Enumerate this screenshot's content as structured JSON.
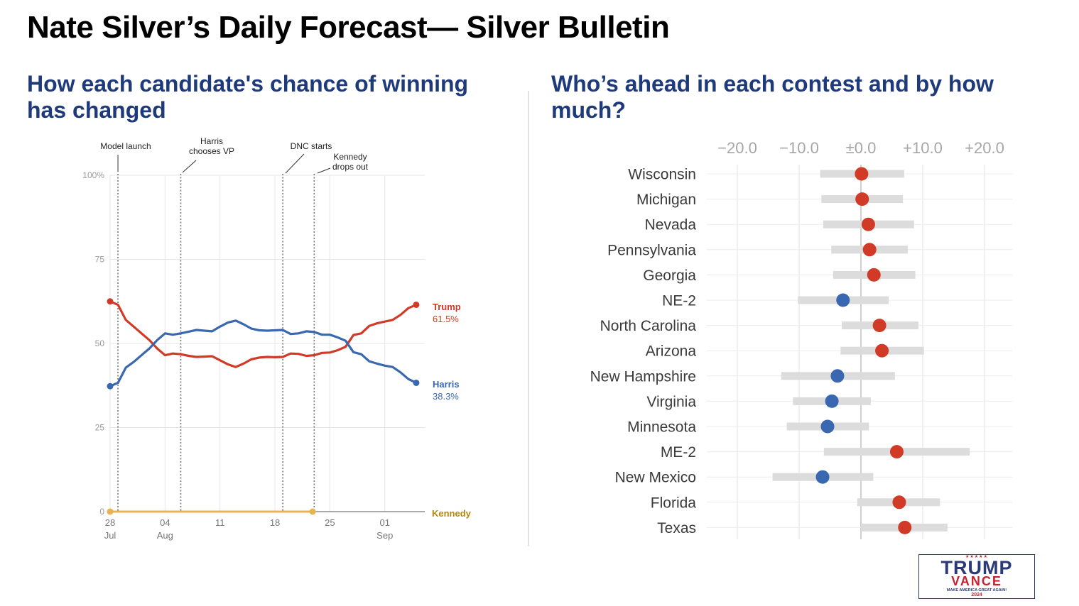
{
  "title": "Nate Silver’s Daily Forecast— Silver Bulletin",
  "left_panel": {
    "subtitle": "How each candidate's chance of winning has changed"
  },
  "right_panel": {
    "subtitle": "Who’s ahead in each contest and by how much?"
  },
  "chart_data": [
    {
      "type": "line",
      "title": "How each candidate's chance of winning has changed",
      "ylim": [
        0,
        100
      ],
      "y_ticks": [
        0,
        25,
        50,
        75,
        100
      ],
      "y_tick_labels": [
        "0",
        "25",
        "50",
        "75",
        "100%"
      ],
      "x_ticks": [
        {
          "day": 0,
          "label": "28",
          "sub": "Jul"
        },
        {
          "day": 7,
          "label": "04",
          "sub": "Aug"
        },
        {
          "day": 14,
          "label": "11",
          "sub": ""
        },
        {
          "day": 21,
          "label": "18",
          "sub": ""
        },
        {
          "day": 28,
          "label": "25",
          "sub": ""
        },
        {
          "day": 35,
          "label": "01",
          "sub": "Sep"
        }
      ],
      "x_range_days": [
        0,
        42
      ],
      "events": [
        {
          "day": 1,
          "label": [
            "Model launch"
          ]
        },
        {
          "day": 9,
          "label": [
            "Harris",
            "chooses VP"
          ]
        },
        {
          "day": 22,
          "label": [
            "DNC starts"
          ]
        },
        {
          "day": 26,
          "label": [
            "Kennedy",
            "drops out"
          ]
        }
      ],
      "series": [
        {
          "name": "Trump",
          "end_label": "61.5%",
          "color": "#d13a26",
          "x": [
            0,
            1,
            2,
            3,
            4,
            5,
            6,
            7,
            8,
            9,
            10,
            11,
            12,
            13,
            14,
            15,
            16,
            17,
            18,
            19,
            20,
            21,
            22,
            23,
            24,
            25,
            26,
            27,
            28,
            29,
            30,
            31,
            32,
            33,
            34,
            35,
            36,
            37,
            38,
            39
          ],
          "values": [
            62.5,
            61.5,
            57,
            55,
            53,
            51,
            48.5,
            46.5,
            47,
            46.8,
            46.3,
            46,
            46.1,
            46.2,
            45,
            43.8,
            43,
            44,
            45.3,
            45.8,
            46,
            45.9,
            46,
            47,
            46.9,
            46.3,
            46.5,
            47.2,
            47.3,
            48,
            49,
            52.5,
            53,
            55.2,
            56,
            56.5,
            57,
            58.5,
            60.5,
            61.5
          ]
        },
        {
          "name": "Harris",
          "end_label": "38.3%",
          "color": "#3a68b0",
          "x": [
            0,
            1,
            2,
            3,
            4,
            5,
            6,
            7,
            8,
            9,
            10,
            11,
            12,
            13,
            14,
            15,
            16,
            17,
            18,
            19,
            20,
            21,
            22,
            23,
            24,
            25,
            26,
            27,
            28,
            29,
            30,
            31,
            32,
            33,
            34,
            35,
            36,
            37,
            38,
            39
          ],
          "values": [
            37.3,
            38.3,
            42.8,
            44.5,
            46.5,
            48.5,
            51,
            53,
            52.6,
            53,
            53.5,
            54,
            53.8,
            53.6,
            55,
            56.2,
            56.8,
            55.7,
            54.4,
            53.9,
            53.8,
            53.9,
            54,
            52.8,
            53,
            53.6,
            53.4,
            52.6,
            52.6,
            51.8,
            50.8,
            47.4,
            46.8,
            44.7,
            44,
            43.4,
            43,
            41.4,
            39.4,
            38.3
          ]
        },
        {
          "name": "Kennedy",
          "end_label": "",
          "color": "#e8b44f",
          "label_color": "#b8860b",
          "x": [
            0,
            25.8
          ],
          "values": [
            0,
            0
          ]
        }
      ]
    },
    {
      "type": "dot_range",
      "title": "Who’s ahead in each contest and by how much?",
      "xlim": [
        -25,
        25
      ],
      "x_ticks": [
        -20,
        -10,
        0,
        10,
        20
      ],
      "x_tick_labels": [
        "−20.0",
        "−10.0",
        "±0.0",
        "+10.0",
        "+20.0"
      ],
      "categories": [
        "Wisconsin",
        "Michigan",
        "Nevada",
        "Pennsylvania",
        "Georgia",
        "NE-2",
        "North Carolina",
        "Arizona",
        "New Hampshire",
        "Virginia",
        "Minnesota",
        "ME-2",
        "New Mexico",
        "Florida",
        "Texas"
      ],
      "values": [
        0.1,
        0.2,
        1.2,
        1.4,
        2.1,
        -2.9,
        3.0,
        3.4,
        -3.8,
        -4.7,
        -5.4,
        5.8,
        -6.2,
        6.2,
        7.1
      ],
      "low": [
        -6.6,
        -6.4,
        -6.1,
        -4.8,
        -4.5,
        -10.2,
        -3.1,
        -3.3,
        -12.9,
        -11.0,
        -12.0,
        -6.0,
        -14.3,
        -0.6,
        0.0
      ],
      "high": [
        7.0,
        6.8,
        8.6,
        7.6,
        8.8,
        4.5,
        9.3,
        10.2,
        5.5,
        1.6,
        1.3,
        17.6,
        2.0,
        12.8,
        14.0
      ],
      "point_colors": [
        "#d13a26",
        "#d13a26",
        "#d13a26",
        "#d13a26",
        "#d13a26",
        "#3a68b0",
        "#d13a26",
        "#d13a26",
        "#3a68b0",
        "#3a68b0",
        "#3a68b0",
        "#d13a26",
        "#3a68b0",
        "#d13a26",
        "#d13a26"
      ]
    }
  ],
  "logo": {
    "stars": "★★★★★",
    "line1": "TRUMP",
    "line2": "VANCE",
    "line3": "MAKE AMERICA GREAT AGAIN!",
    "line4": "2024"
  }
}
